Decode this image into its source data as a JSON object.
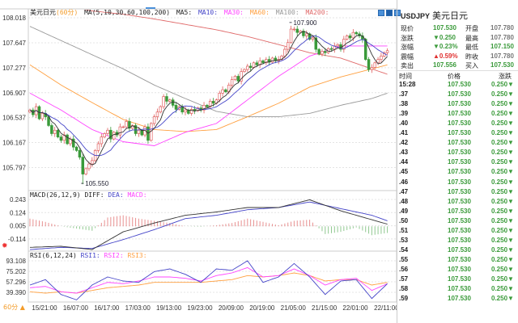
{
  "title": {
    "instrument": "美元日元",
    "period": "(60分)",
    "ma_params": "MA(5,10,30,60,100,200)",
    "ma5": "MA5:",
    "ma10": "MA10:",
    "ma30": "MA30:",
    "ma60": "MA60:",
    "ma100": "MA100:",
    "ma200": "MA200:"
  },
  "macd_title": {
    "params": "MACD(26,12,9)",
    "diff": "DIFF:",
    "dea": "DEA:",
    "macd": "MACD:"
  },
  "rsi_title": {
    "params": "RSI(6,12,24)",
    "rsi1": "RSI1:",
    "rsi2": "RSI2:",
    "rsi3": "RSI3:"
  },
  "timeframe": "60分 ▲",
  "colors": {
    "up": "#e06060",
    "down": "#3a9a3a",
    "ma5": "#333333",
    "ma10": "#4444c8",
    "ma30": "#ff44ff",
    "ma60": "#ffa040",
    "ma100": "#999999",
    "ma200": "#e06a6a",
    "rsi1": "#4444c8",
    "rsi2": "#ff44ff",
    "rsi3": "#ffa040"
  },
  "chart_data": {
    "type": "candlestick",
    "main_yticks": [
      "108.018",
      "107.647",
      "107.277",
      "106.907",
      "106.537",
      "106.167",
      "105.797"
    ],
    "main_ylim": [
      105.45,
      108.05
    ],
    "macd_yticks": [
      "0.243",
      "0.124",
      "0.005",
      "-0.114"
    ],
    "rsi_yticks": [
      "93.108",
      "75.202",
      "57.296",
      "39.390"
    ],
    "xticks": [
      "15/21:00",
      "16/07:00",
      "16/17:00",
      "17/03:00",
      "19/13:00",
      "19/23:00",
      "20/09:00",
      "20/19:00",
      "21/05:00",
      "21/15:00",
      "22/01:00",
      "22/11:00"
    ],
    "high_label": {
      "text": "107.900",
      "value": 107.9,
      "index": 84
    },
    "low_label": {
      "text": "105.550",
      "value": 105.55,
      "index": 17
    },
    "first_open": 106.62,
    "closes": [
      106.65,
      106.58,
      106.7,
      106.52,
      106.6,
      106.55,
      106.42,
      106.3,
      106.35,
      106.25,
      106.2,
      106.28,
      106.15,
      106.22,
      106.1,
      106.05,
      105.95,
      105.7,
      105.78,
      105.85,
      105.9,
      106.05,
      106.15,
      106.25,
      106.3,
      106.35,
      106.22,
      106.32,
      106.28,
      106.4,
      106.4,
      106.48,
      106.38,
      106.42,
      106.3,
      106.35,
      106.28,
      106.4,
      106.2,
      106.45,
      106.55,
      106.62,
      106.7,
      106.85,
      106.78,
      106.8,
      106.72,
      106.66,
      106.7,
      106.62,
      106.65,
      106.6,
      106.66,
      106.64,
      106.68,
      106.65,
      106.72,
      106.7,
      106.78,
      106.75,
      106.8,
      106.9,
      106.95,
      106.92,
      107.02,
      107.1,
      107.15,
      107.08,
      107.22,
      107.25,
      107.3,
      107.28,
      107.35,
      107.32,
      107.38,
      107.35,
      107.4,
      107.36,
      107.42,
      107.38,
      107.4,
      107.45,
      107.55,
      107.65,
      107.85,
      107.85,
      107.8,
      107.82,
      107.75,
      107.78,
      107.7,
      107.72,
      107.55,
      107.48,
      107.52,
      107.5,
      107.56,
      107.55,
      107.6,
      107.62,
      107.55,
      107.7,
      107.75,
      107.72,
      107.8,
      107.78,
      107.75,
      107.7,
      107.4,
      107.25,
      107.28,
      107.35,
      107.4,
      107.45,
      107.5,
      107.53
    ],
    "ma_sample_index": [
      0,
      10,
      20,
      30,
      40,
      50,
      60,
      70,
      80,
      90,
      100,
      110,
      115
    ],
    "ma30": [
      106.9,
      106.65,
      106.36,
      106.18,
      106.12,
      106.32,
      106.45,
      106.8,
      107.15,
      107.45,
      107.6,
      107.6,
      107.6
    ],
    "ma60": [
      107.32,
      107.02,
      106.76,
      106.51,
      106.36,
      106.33,
      106.36,
      106.55,
      106.75,
      106.99,
      107.14,
      107.26,
      107.32
    ],
    "ma100": [
      107.89,
      107.68,
      107.47,
      107.26,
      107.02,
      106.82,
      106.63,
      106.55,
      106.55,
      106.6,
      106.72,
      106.82,
      106.9
    ],
    "ma200": [
      108.3,
      108.2,
      108.12,
      108.07,
      108.0,
      107.92,
      107.84,
      107.74,
      107.62,
      107.5,
      107.42,
      107.26,
      107.18
    ],
    "diff": [
      -0.19,
      -0.18,
      -0.21,
      -0.05,
      0.03,
      0.1,
      0.13,
      0.17,
      0.17,
      0.24,
      0.14,
      0.06,
      0.02
    ],
    "dea": [
      -0.21,
      -0.19,
      -0.2,
      -0.12,
      -0.03,
      0.07,
      0.1,
      0.15,
      0.17,
      0.22,
      0.16,
      0.1,
      0.05
    ],
    "hist_sample_step": 5,
    "macd_hist": [
      0.07,
      0.04,
      0.0,
      -0.02,
      -0.04,
      0.08,
      0.1,
      0.07,
      0.05,
      0.03,
      0.0,
      -0.005,
      0.01,
      0.03,
      0.07,
      0.04,
      0.01,
      0.05,
      0.06,
      -0.07,
      -0.05,
      -0.01,
      -0.08,
      -0.06
    ],
    "rsi_sample_step": 5,
    "rsi1": [
      51.8,
      61,
      35.7,
      26.5,
      51.8,
      65.6,
      58.7,
      56.4,
      74.7,
      79.3,
      70.1,
      56.4,
      79.3,
      77,
      93.1,
      56.4,
      65.6,
      88.5,
      65.6,
      35.7,
      58.7,
      61,
      28.8,
      54.1
    ],
    "rsi2": [
      47.2,
      49.5,
      40.3,
      38,
      47.2,
      56.4,
      54.1,
      58.7,
      65.6,
      65.6,
      63.3,
      58.7,
      67.9,
      72.4,
      81.6,
      65.6,
      67.9,
      79.3,
      67.9,
      51.8,
      61,
      63.3,
      42.6,
      54.1
    ],
    "rsi3": [
      40.3,
      38,
      40.3,
      38,
      42.6,
      47.2,
      49.5,
      51.8,
      56.4,
      56.4,
      56.4,
      56.4,
      58.7,
      61,
      67.9,
      65.6,
      67.9,
      72.4,
      67.9,
      58.7,
      61,
      61,
      51.8,
      56.4
    ]
  },
  "panel": {
    "symbol": "USDJPY",
    "name": "美元日元",
    "quotes": [
      {
        "l1": "现价",
        "v1": "107.530",
        "c1": "g",
        "l2": "开盘",
        "v2": "107.780",
        "c2": "k"
      },
      {
        "l1": "涨跌",
        "v1": "▼0.250",
        "c1": "g",
        "l2": "最高",
        "v2": "107.780",
        "c2": "k"
      },
      {
        "l1": "涨幅",
        "v1": "▼0.23%",
        "c1": "g",
        "l2": "最低",
        "v2": "107.150",
        "c2": "g"
      },
      {
        "l1": "震幅",
        "v1": "▲0.59%",
        "c1": "r",
        "l2": "昨收",
        "v2": "107.780",
        "c2": "k"
      },
      {
        "l1": "卖出",
        "v1": "107.556",
        "c1": "g",
        "l2": "买入",
        "v2": "107.530",
        "c2": "g"
      }
    ],
    "headers": {
      "time": "时间",
      "price": "价格",
      "change": "涨跌"
    },
    "ticks": [
      {
        "t": "15:28",
        "p": "107.530",
        "c": "0.250▼"
      },
      {
        "t": ".37",
        "p": "107.530",
        "c": "0.250▼"
      },
      {
        "t": ".38",
        "p": "107.530",
        "c": "0.250▼"
      },
      {
        "t": ".39",
        "p": "107.530",
        "c": "0.250▼"
      },
      {
        "t": ".40",
        "p": "107.530",
        "c": "0.250▼"
      },
      {
        "t": ".41",
        "p": "107.530",
        "c": "0.250▼"
      },
      {
        "t": ".42",
        "p": "107.530",
        "c": "0.250▼"
      },
      {
        "t": ".43",
        "p": "107.530",
        "c": "0.250▼"
      },
      {
        "t": ".44",
        "p": "107.530",
        "c": "0.250▼"
      },
      {
        "t": ".45",
        "p": "107.530",
        "c": "0.250▼"
      },
      {
        "t": ".46",
        "p": "107.530",
        "c": "0.250▼"
      },
      {
        "t": ".47",
        "p": "107.530",
        "c": "0.250▼"
      },
      {
        "t": ".48",
        "p": "107.530",
        "c": "0.250▼"
      },
      {
        "t": ".49",
        "p": "107.530",
        "c": "0.250▼"
      },
      {
        "t": ".50",
        "p": "107.530",
        "c": "0.250▼"
      },
      {
        "t": ".51",
        "p": "107.530",
        "c": "0.250▼"
      },
      {
        "t": ".53",
        "p": "107.530",
        "c": "0.250▼"
      },
      {
        "t": ".54",
        "p": "107.530",
        "c": "0.250▼"
      },
      {
        "t": ".55",
        "p": "107.530",
        "c": "0.250▼"
      },
      {
        "t": ".56",
        "p": "107.530",
        "c": "0.250▼"
      },
      {
        "t": ".57",
        "p": "107.530",
        "c": "0.250▼"
      },
      {
        "t": ".58",
        "p": "107.530",
        "c": "0.250▼"
      },
      {
        "t": ".59",
        "p": "107.530",
        "c": "0.250▼"
      }
    ]
  }
}
